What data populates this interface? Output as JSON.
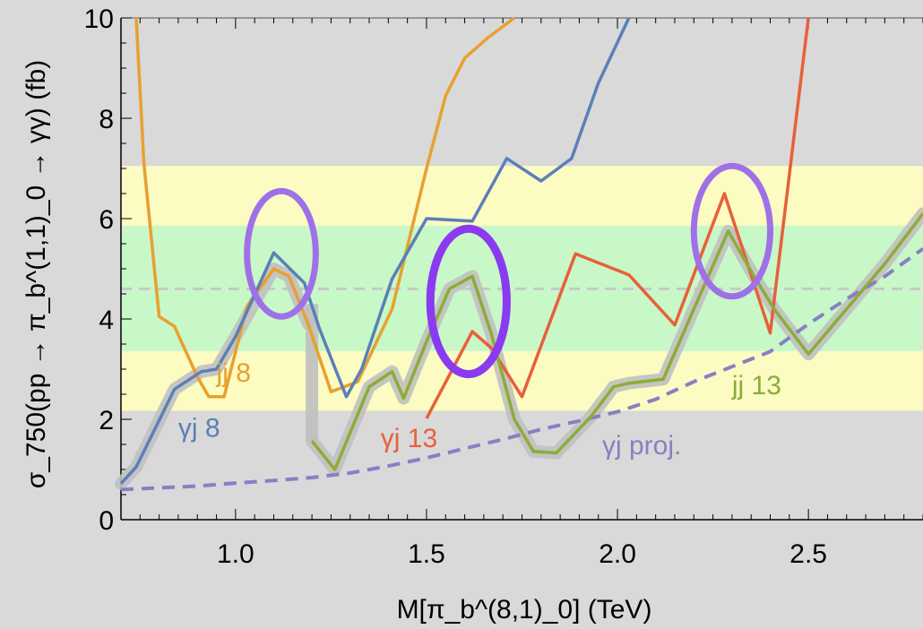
{
  "chart_data": {
    "type": "line",
    "xlabel": "M[π_b^(8,1)_0] (TeV)",
    "ylabel": "σ_750(pp → π_b^(1,1)_0 → γγ) (fb)",
    "xlim": [
      0.7,
      2.8
    ],
    "ylim": [
      0,
      10
    ],
    "x_ticks": [
      1.0,
      1.5,
      2.0,
      2.5
    ],
    "x_tick_labels": [
      "1.0",
      "1.5",
      "2.0",
      "2.5"
    ],
    "y_ticks": [
      0,
      2,
      4,
      6,
      8,
      10
    ],
    "y_tick_labels": [
      "0",
      "2",
      "4",
      "6",
      "8",
      "10"
    ],
    "bands": [
      {
        "name": "yellow",
        "y0": 2.17,
        "y1": 7.05,
        "color": "#fbfbc2"
      },
      {
        "name": "green",
        "y0": 3.36,
        "y1": 5.86,
        "color": "#c8f8c8"
      }
    ],
    "central_line": {
      "y": 4.6,
      "color": "#c8c8c8"
    },
    "background_color": "#d9d9d9",
    "series": [
      {
        "name": "jj 8",
        "color": "#e8a030",
        "points": [
          [
            0.74,
            10.0
          ],
          [
            0.76,
            7.1
          ],
          [
            0.8,
            4.05
          ],
          [
            0.84,
            3.85
          ],
          [
            0.9,
            2.85
          ],
          [
            0.93,
            2.45
          ],
          [
            0.97,
            2.45
          ],
          [
            1.03,
            4.25
          ],
          [
            1.1,
            5.0
          ],
          [
            1.14,
            4.85
          ],
          [
            1.19,
            3.9
          ],
          [
            1.25,
            2.55
          ],
          [
            1.32,
            2.75
          ],
          [
            1.41,
            4.2
          ],
          [
            1.5,
            7.0
          ],
          [
            1.55,
            8.45
          ],
          [
            1.6,
            9.2
          ],
          [
            1.66,
            9.6
          ],
          [
            1.73,
            10.0
          ]
        ]
      },
      {
        "name": "γj 8",
        "color": "#5a80b8",
        "points": [
          [
            0.7,
            0.72
          ],
          [
            0.74,
            1.05
          ],
          [
            0.84,
            2.6
          ],
          [
            0.91,
            2.95
          ],
          [
            0.95,
            3.0
          ],
          [
            1.0,
            3.65
          ],
          [
            1.1,
            5.32
          ],
          [
            1.18,
            4.72
          ],
          [
            1.22,
            3.8
          ],
          [
            1.29,
            2.45
          ],
          [
            1.33,
            3.0
          ],
          [
            1.41,
            4.8
          ],
          [
            1.5,
            6.0
          ],
          [
            1.62,
            5.95
          ],
          [
            1.71,
            7.2
          ],
          [
            1.8,
            6.75
          ],
          [
            1.88,
            7.2
          ],
          [
            1.95,
            8.7
          ],
          [
            2.03,
            10.0
          ]
        ]
      },
      {
        "name": "γj 13",
        "color": "#e8603a",
        "points": [
          [
            1.5,
            2.02
          ],
          [
            1.62,
            3.75
          ],
          [
            1.67,
            3.42
          ],
          [
            1.75,
            2.45
          ],
          [
            1.89,
            5.3
          ],
          [
            2.03,
            4.88
          ],
          [
            2.15,
            3.88
          ],
          [
            2.28,
            6.5
          ],
          [
            2.4,
            3.72
          ],
          [
            2.46,
            7.5
          ],
          [
            2.5,
            10.0
          ]
        ]
      },
      {
        "name": "jj 13",
        "color": "#8cac38",
        "points": [
          [
            1.2,
            1.57
          ],
          [
            1.26,
            1.0
          ],
          [
            1.35,
            2.65
          ],
          [
            1.41,
            2.95
          ],
          [
            1.44,
            2.42
          ],
          [
            1.5,
            3.55
          ],
          [
            1.56,
            4.6
          ],
          [
            1.62,
            4.85
          ],
          [
            1.67,
            3.7
          ],
          [
            1.73,
            2.0
          ],
          [
            1.78,
            1.36
          ],
          [
            1.84,
            1.33
          ],
          [
            1.93,
            2.05
          ],
          [
            1.99,
            2.65
          ],
          [
            2.03,
            2.72
          ],
          [
            2.12,
            2.8
          ],
          [
            2.2,
            4.2
          ],
          [
            2.29,
            5.75
          ],
          [
            2.35,
            4.95
          ],
          [
            2.41,
            4.2
          ],
          [
            2.5,
            3.3
          ],
          [
            2.6,
            4.2
          ],
          [
            2.7,
            5.1
          ],
          [
            2.8,
            6.1
          ]
        ]
      }
    ],
    "projection": {
      "name": "γj proj.",
      "color": "#8a7ec4",
      "points": [
        [
          0.7,
          0.6
        ],
        [
          0.9,
          0.67
        ],
        [
          1.0,
          0.73
        ],
        [
          1.1,
          0.78
        ],
        [
          1.2,
          0.84
        ],
        [
          1.3,
          0.93
        ],
        [
          1.4,
          1.07
        ],
        [
          1.5,
          1.23
        ],
        [
          1.6,
          1.42
        ],
        [
          1.7,
          1.6
        ],
        [
          1.8,
          1.8
        ],
        [
          1.9,
          1.97
        ],
        [
          2.0,
          2.15
        ],
        [
          2.1,
          2.4
        ],
        [
          2.2,
          2.75
        ],
        [
          2.3,
          3.05
        ],
        [
          2.4,
          3.35
        ],
        [
          2.5,
          3.9
        ],
        [
          2.6,
          4.4
        ],
        [
          2.7,
          4.85
        ],
        [
          2.8,
          5.4
        ]
      ]
    },
    "highlight_ellipses": [
      {
        "cx": 1.12,
        "cy": 5.3,
        "rx": 0.09,
        "ry": 1.25,
        "color": "#a070e8"
      },
      {
        "cx": 1.61,
        "cy": 4.35,
        "rx": 0.1,
        "ry": 1.45,
        "color": "#8a3af0"
      },
      {
        "cx": 2.3,
        "cy": 5.75,
        "rx": 0.1,
        "ry": 1.3,
        "color": "#a070e8"
      }
    ],
    "series_labels": [
      {
        "text": "jj 8",
        "x": 0.95,
        "y": 2.75,
        "color": "#e8a030"
      },
      {
        "text": "γj 8",
        "x": 0.85,
        "y": 1.65,
        "color": "#5a80b8"
      },
      {
        "text": "γj 13",
        "x": 1.38,
        "y": 1.45,
        "color": "#e8603a"
      },
      {
        "text": "γj proj.",
        "x": 1.96,
        "y": 1.3,
        "color": "#8a7ec4"
      },
      {
        "text": "jj 13",
        "x": 2.3,
        "y": 2.5,
        "color": "#8cac38"
      }
    ]
  }
}
